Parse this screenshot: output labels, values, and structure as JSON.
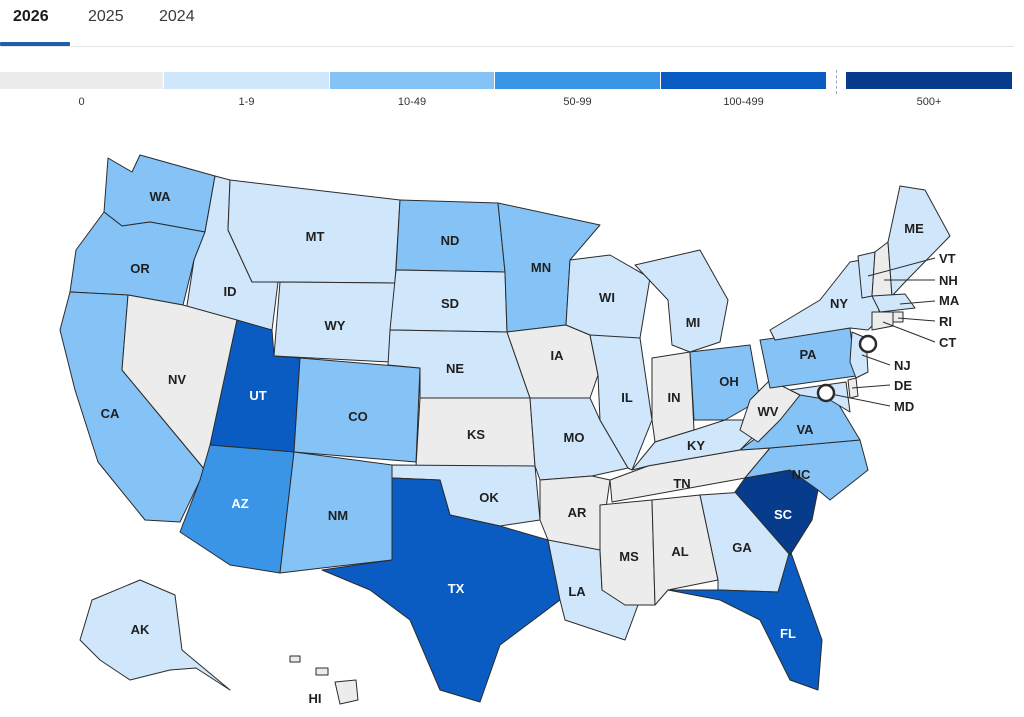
{
  "tabs": [
    {
      "label": "2026",
      "active": true
    },
    {
      "label": "2025",
      "active": false
    },
    {
      "label": "2024",
      "active": false
    }
  ],
  "legend": [
    {
      "label": "0",
      "color": "#ececec"
    },
    {
      "label": "1-9",
      "color": "#cfe6fb"
    },
    {
      "label": "10-49",
      "color": "#85c3f7"
    },
    {
      "label": "50-99",
      "color": "#3a95e6"
    },
    {
      "label": "100-499",
      "color": "#0a5cc2"
    },
    {
      "label": "500+",
      "color": "#073b8c"
    }
  ],
  "states": [
    {
      "abbr": "WA",
      "bin": "10-49"
    },
    {
      "abbr": "OR",
      "bin": "10-49"
    },
    {
      "abbr": "CA",
      "bin": "10-49"
    },
    {
      "abbr": "ID",
      "bin": "1-9"
    },
    {
      "abbr": "NV",
      "bin": "0"
    },
    {
      "abbr": "MT",
      "bin": "1-9"
    },
    {
      "abbr": "WY",
      "bin": "1-9"
    },
    {
      "abbr": "UT",
      "bin": "100-499"
    },
    {
      "abbr": "AZ",
      "bin": "50-99"
    },
    {
      "abbr": "CO",
      "bin": "10-49"
    },
    {
      "abbr": "NM",
      "bin": "10-49"
    },
    {
      "abbr": "ND",
      "bin": "10-49"
    },
    {
      "abbr": "SD",
      "bin": "1-9"
    },
    {
      "abbr": "NE",
      "bin": "1-9"
    },
    {
      "abbr": "KS",
      "bin": "0"
    },
    {
      "abbr": "OK",
      "bin": "1-9"
    },
    {
      "abbr": "TX",
      "bin": "100-499"
    },
    {
      "abbr": "MN",
      "bin": "10-49"
    },
    {
      "abbr": "IA",
      "bin": "0"
    },
    {
      "abbr": "MO",
      "bin": "1-9"
    },
    {
      "abbr": "AR",
      "bin": "0"
    },
    {
      "abbr": "LA",
      "bin": "1-9"
    },
    {
      "abbr": "WI",
      "bin": "1-9"
    },
    {
      "abbr": "IL",
      "bin": "1-9"
    },
    {
      "abbr": "MI",
      "bin": "1-9"
    },
    {
      "abbr": "IN",
      "bin": "0"
    },
    {
      "abbr": "OH",
      "bin": "10-49"
    },
    {
      "abbr": "KY",
      "bin": "1-9"
    },
    {
      "abbr": "TN",
      "bin": "0"
    },
    {
      "abbr": "MS",
      "bin": "0"
    },
    {
      "abbr": "AL",
      "bin": "0"
    },
    {
      "abbr": "GA",
      "bin": "1-9"
    },
    {
      "abbr": "FL",
      "bin": "100-499"
    },
    {
      "abbr": "SC",
      "bin": "500+"
    },
    {
      "abbr": "NC",
      "bin": "10-49"
    },
    {
      "abbr": "VA",
      "bin": "10-49"
    },
    {
      "abbr": "WV",
      "bin": "0"
    },
    {
      "abbr": "PA",
      "bin": "10-49"
    },
    {
      "abbr": "NY",
      "bin": "1-9"
    },
    {
      "abbr": "VT",
      "bin": "1-9"
    },
    {
      "abbr": "NH",
      "bin": "0"
    },
    {
      "abbr": "ME",
      "bin": "1-9"
    },
    {
      "abbr": "MA",
      "bin": "1-9"
    },
    {
      "abbr": "RI",
      "bin": "0"
    },
    {
      "abbr": "CT",
      "bin": "0"
    },
    {
      "abbr": "NJ",
      "bin": "1-9"
    },
    {
      "abbr": "DE",
      "bin": "0"
    },
    {
      "abbr": "MD",
      "bin": "1-9"
    },
    {
      "abbr": "AK",
      "bin": "1-9"
    },
    {
      "abbr": "HI",
      "bin": "0"
    }
  ]
}
